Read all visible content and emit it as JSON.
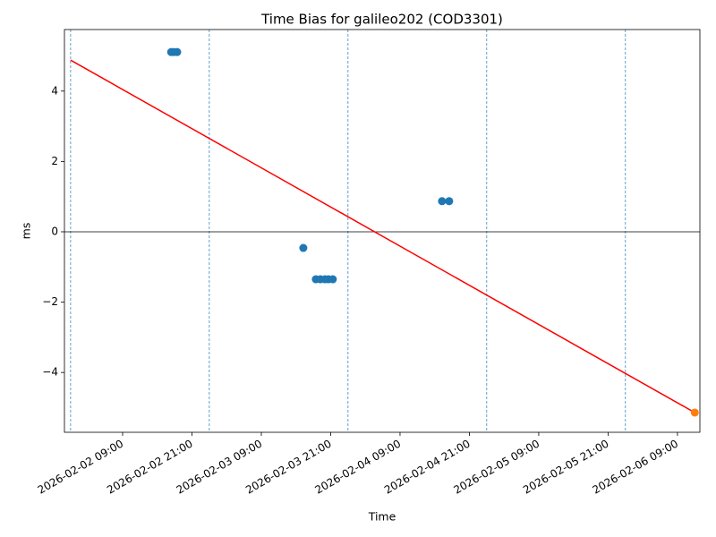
{
  "chart_data": {
    "type": "scatter",
    "title": "Time Bias for galileo202 (COD3301)",
    "x_label": "Time",
    "y_label": "ms",
    "xlim": [
      "2026-02-01 22:56",
      "2026-02-06 12:53"
    ],
    "ylim": [
      -5.7,
      5.75
    ],
    "xticks": [
      "2026-02-02 09:00",
      "2026-02-02 21:00",
      "2026-02-03 09:00",
      "2026-02-03 21:00",
      "2026-02-04 09:00",
      "2026-02-04 21:00",
      "2026-02-05 09:00",
      "2026-02-05 21:00",
      "2026-02-06 09:00"
    ],
    "yticks": [
      {
        "value": -4,
        "label": "−4"
      },
      {
        "value": -2,
        "label": "−2"
      },
      0,
      2,
      4
    ],
    "hline": 0,
    "hline_color": "#000000",
    "vlines": [
      "2026-02-02 00:00",
      "2026-02-03 00:00",
      "2026-02-04 00:00",
      "2026-02-05 00:00",
      "2026-02-06 00:00"
    ],
    "vline_color": "#1f77b4",
    "series": [
      {
        "kind": "scatter",
        "color": "#1f77b4",
        "x": [
          "2026-02-02 17:24",
          "2026-02-02 17:50",
          "2026-02-02 18:26",
          "2026-02-03 16:16",
          "2026-02-03 18:26",
          "2026-02-03 19:13",
          "2026-02-03 20:00",
          "2026-02-03 20:36",
          "2026-02-03 21:22",
          "2026-02-04 16:16",
          "2026-02-04 17:30"
        ],
        "values": [
          5.11,
          5.11,
          5.11,
          -0.46,
          -1.35,
          -1.35,
          -1.35,
          -1.35,
          -1.35,
          0.87,
          0.87
        ]
      },
      {
        "kind": "line",
        "color": "#ff0000",
        "x": [
          "2026-02-02 00:00",
          "2026-02-06 12:00"
        ],
        "values": [
          4.88,
          -5.14
        ]
      },
      {
        "kind": "scatter",
        "color": "#ff7f0e",
        "x": [
          "2026-02-06 12:00"
        ],
        "values": [
          -5.14
        ]
      }
    ]
  }
}
